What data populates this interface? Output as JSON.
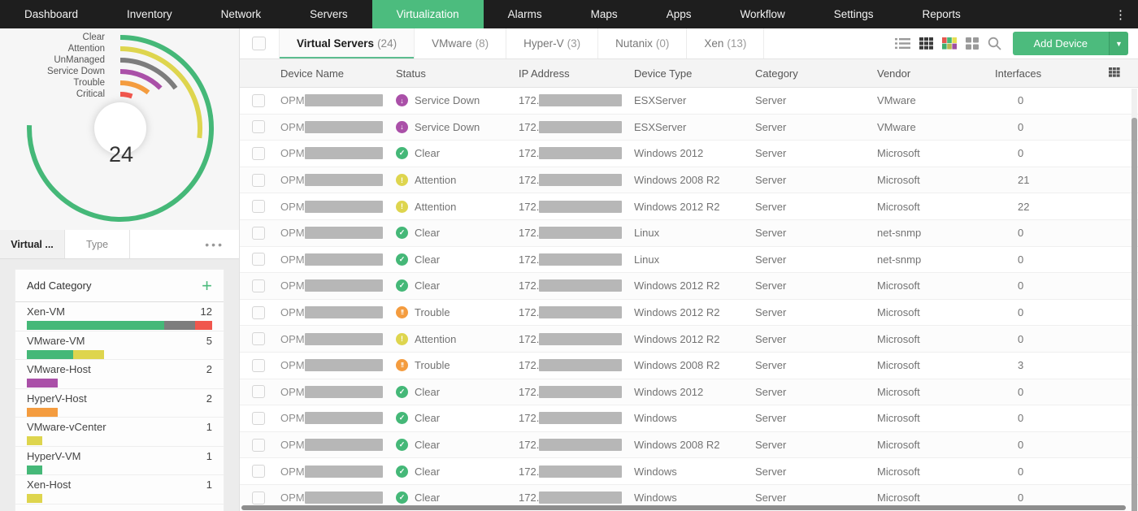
{
  "nav": {
    "items": [
      {
        "label": "Dashboard",
        "active": false
      },
      {
        "label": "Inventory",
        "active": false
      },
      {
        "label": "Network",
        "active": false
      },
      {
        "label": "Servers",
        "active": false
      },
      {
        "label": "Virtualization",
        "active": true
      },
      {
        "label": "Alarms",
        "active": false
      },
      {
        "label": "Maps",
        "active": false
      },
      {
        "label": "Apps",
        "active": false
      },
      {
        "label": "Workflow",
        "active": false
      },
      {
        "label": "Settings",
        "active": false
      },
      {
        "label": "Reports",
        "active": false
      }
    ],
    "kebab_icon": "vertical-ellipsis"
  },
  "colors": {
    "nav_bg": "#1e1e1e",
    "accent_green": "#4cbb7d",
    "clear": "#45b878",
    "attention": "#ded54e",
    "unmanaged": "#7d7d7d",
    "service_down": "#aa50a8",
    "trouble": "#f49c3f",
    "critical": "#f0564d"
  },
  "chart_data": {
    "type": "radial-bar",
    "center_total": "24",
    "legend_position": "top-left",
    "rings": [
      {
        "label": "Clear",
        "status": "clear",
        "sweep_deg": 272
      },
      {
        "label": "Attention",
        "status": "attention",
        "sweep_deg": 97
      },
      {
        "label": "UnManaged",
        "status": "unmanaged",
        "sweep_deg": 54
      },
      {
        "label": "Service Down",
        "status": "service_down",
        "sweep_deg": 45
      },
      {
        "label": "Trouble",
        "status": "trouble",
        "sweep_deg": 38
      },
      {
        "label": "Critical",
        "status": "critical",
        "sweep_deg": 20
      }
    ]
  },
  "sidebar": {
    "tabs": [
      {
        "label": "Virtual ...",
        "active": true
      },
      {
        "label": "Type",
        "active": false
      }
    ],
    "more_icon": "ellipsis",
    "add_category": {
      "label": "Add Category",
      "icon": "plus"
    },
    "categories": [
      {
        "name": "Xen-VM",
        "count": "12",
        "bar_width_pct": 100,
        "segments": [
          {
            "status": "clear",
            "pct": 74
          },
          {
            "status": "unmanaged",
            "pct": 17
          },
          {
            "status": "critical",
            "pct": 9
          }
        ]
      },
      {
        "name": "VMware-VM",
        "count": "5",
        "bar_width_pct": 41.5,
        "segments": [
          {
            "status": "clear",
            "pct": 60
          },
          {
            "status": "attention",
            "pct": 40
          }
        ]
      },
      {
        "name": "VMware-Host",
        "count": "2",
        "bar_width_pct": 16.5,
        "segments": [
          {
            "status": "service_down",
            "pct": 100
          }
        ]
      },
      {
        "name": "HyperV-Host",
        "count": "2",
        "bar_width_pct": 16.5,
        "segments": [
          {
            "status": "trouble",
            "pct": 100
          }
        ]
      },
      {
        "name": "VMware-vCenter",
        "count": "1",
        "bar_width_pct": 8.3,
        "segments": [
          {
            "status": "attention",
            "pct": 100
          }
        ]
      },
      {
        "name": "HyperV-VM",
        "count": "1",
        "bar_width_pct": 8.3,
        "segments": [
          {
            "status": "clear",
            "pct": 100
          }
        ]
      },
      {
        "name": "Xen-Host",
        "count": "1",
        "bar_width_pct": 8.3,
        "segments": [
          {
            "status": "attention",
            "pct": 100
          }
        ]
      }
    ]
  },
  "toolbar": {
    "tabs": [
      {
        "label": "Virtual Servers",
        "count": "(24)",
        "active": true
      },
      {
        "label": "VMware",
        "count": "(8)",
        "active": false
      },
      {
        "label": "Hyper-V",
        "count": "(3)",
        "active": false
      },
      {
        "label": "Nutanix",
        "count": "(0)",
        "active": false
      },
      {
        "label": "Xen",
        "count": "(13)",
        "active": false
      }
    ],
    "view_icons": [
      "list-view",
      "table-view",
      "heatmap-view",
      "card-view",
      "search"
    ],
    "active_view": "table-view",
    "add_device_label": "Add Device"
  },
  "table": {
    "columns": [
      "Device Name",
      "Status",
      "IP Address",
      "Device Type",
      "Category",
      "Vendor",
      "Interfaces"
    ],
    "device_name_prefix": "OPM",
    "device_name_redacted": true,
    "ip_prefix": "172.",
    "ip_redacted": true,
    "rows": [
      {
        "status": "Service Down",
        "status_key": "service_down",
        "device_type": "ESXServer",
        "category": "Server",
        "vendor": "VMware",
        "interfaces": "0"
      },
      {
        "status": "Service Down",
        "status_key": "service_down",
        "device_type": "ESXServer",
        "category": "Server",
        "vendor": "VMware",
        "interfaces": "0"
      },
      {
        "status": "Clear",
        "status_key": "clear",
        "device_type": "Windows 2012",
        "category": "Server",
        "vendor": "Microsoft",
        "interfaces": "0"
      },
      {
        "status": "Attention",
        "status_key": "attention",
        "device_type": "Windows 2008 R2",
        "category": "Server",
        "vendor": "Microsoft",
        "interfaces": "21"
      },
      {
        "status": "Attention",
        "status_key": "attention",
        "device_type": "Windows 2012 R2",
        "category": "Server",
        "vendor": "Microsoft",
        "interfaces": "22"
      },
      {
        "status": "Clear",
        "status_key": "clear",
        "device_type": "Linux",
        "category": "Server",
        "vendor": "net-snmp",
        "interfaces": "0"
      },
      {
        "status": "Clear",
        "status_key": "clear",
        "device_type": "Linux",
        "category": "Server",
        "vendor": "net-snmp",
        "interfaces": "0"
      },
      {
        "status": "Clear",
        "status_key": "clear",
        "device_type": "Windows 2012 R2",
        "category": "Server",
        "vendor": "Microsoft",
        "interfaces": "0"
      },
      {
        "status": "Trouble",
        "status_key": "trouble",
        "device_type": "Windows 2012 R2",
        "category": "Server",
        "vendor": "Microsoft",
        "interfaces": "0"
      },
      {
        "status": "Attention",
        "status_key": "attention",
        "device_type": "Windows 2012 R2",
        "category": "Server",
        "vendor": "Microsoft",
        "interfaces": "0"
      },
      {
        "status": "Trouble",
        "status_key": "trouble",
        "device_type": "Windows 2008 R2",
        "category": "Server",
        "vendor": "Microsoft",
        "interfaces": "3"
      },
      {
        "status": "Clear",
        "status_key": "clear",
        "device_type": "Windows 2012",
        "category": "Server",
        "vendor": "Microsoft",
        "interfaces": "0"
      },
      {
        "status": "Clear",
        "status_key": "clear",
        "device_type": "Windows",
        "category": "Server",
        "vendor": "Microsoft",
        "interfaces": "0"
      },
      {
        "status": "Clear",
        "status_key": "clear",
        "device_type": "Windows 2008 R2",
        "category": "Server",
        "vendor": "Microsoft",
        "interfaces": "0"
      },
      {
        "status": "Clear",
        "status_key": "clear",
        "device_type": "Windows",
        "category": "Server",
        "vendor": "Microsoft",
        "interfaces": "0"
      },
      {
        "status": "Clear",
        "status_key": "clear",
        "device_type": "Windows",
        "category": "Server",
        "vendor": "Microsoft",
        "interfaces": "0"
      }
    ]
  }
}
